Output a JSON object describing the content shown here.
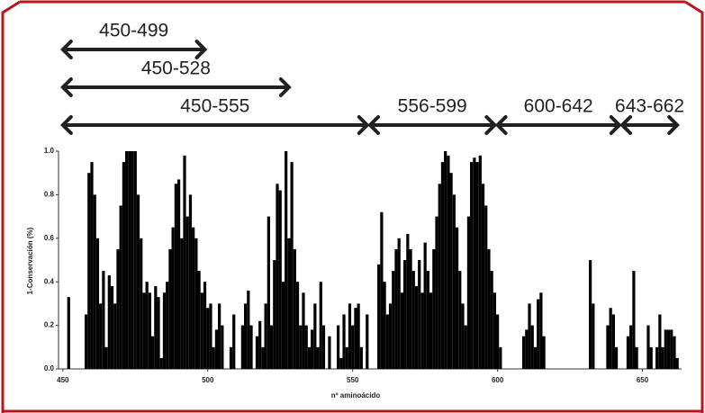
{
  "chart_data": {
    "type": "bar",
    "xlabel": "nº aminoácido",
    "ylabel": "1-Conservación (%)",
    "color": "#000000",
    "annotations": [
      {
        "label": "450-499",
        "start": 450,
        "end": 499
      },
      {
        "label": "450-528",
        "start": 450,
        "end": 528
      },
      {
        "label": "450-555",
        "start": 450,
        "end": 555
      },
      {
        "label": "556-599",
        "start": 556,
        "end": 599
      },
      {
        "label": "600-642",
        "start": 600,
        "end": 642
      },
      {
        "label": "643-662",
        "start": 643,
        "end": 662
      }
    ],
    "x": [
      450,
      451,
      452,
      453,
      454,
      455,
      456,
      457,
      458,
      459,
      460,
      461,
      462,
      463,
      464,
      465,
      466,
      467,
      468,
      469,
      470,
      471,
      472,
      473,
      474,
      475,
      476,
      477,
      478,
      479,
      480,
      481,
      482,
      483,
      484,
      485,
      486,
      487,
      488,
      489,
      490,
      491,
      492,
      493,
      494,
      495,
      496,
      497,
      498,
      499,
      500,
      501,
      502,
      503,
      504,
      505,
      506,
      507,
      508,
      509,
      510,
      511,
      512,
      513,
      514,
      515,
      516,
      517,
      518,
      519,
      520,
      521,
      522,
      523,
      524,
      525,
      526,
      527,
      528,
      529,
      530,
      531,
      532,
      533,
      534,
      535,
      536,
      537,
      538,
      539,
      540,
      541,
      542,
      543,
      544,
      545,
      546,
      547,
      548,
      549,
      550,
      551,
      552,
      553,
      554,
      555,
      556,
      557,
      558,
      559,
      560,
      561,
      562,
      563,
      564,
      565,
      566,
      567,
      568,
      569,
      570,
      571,
      572,
      573,
      574,
      575,
      576,
      577,
      578,
      579,
      580,
      581,
      582,
      583,
      584,
      585,
      586,
      587,
      588,
      589,
      590,
      591,
      592,
      593,
      594,
      595,
      596,
      597,
      598,
      599,
      600,
      601,
      602,
      603,
      604,
      605,
      606,
      607,
      608,
      609,
      610,
      611,
      612,
      613,
      614,
      615,
      616,
      617,
      618,
      619,
      620,
      621,
      622,
      623,
      624,
      625,
      626,
      627,
      628,
      629,
      630,
      631,
      632,
      633,
      634,
      635,
      636,
      637,
      638,
      639,
      640,
      641,
      642,
      643,
      644,
      645,
      646,
      647,
      648,
      649,
      650,
      651,
      652,
      653,
      654,
      655,
      656,
      657,
      658,
      659,
      660,
      661,
      662
    ],
    "values": [
      0,
      0,
      0.33,
      0,
      0,
      0,
      0,
      0,
      0.25,
      0.9,
      0.95,
      0.8,
      0.6,
      0.3,
      0.45,
      0.1,
      0.43,
      0.38,
      0.3,
      0.55,
      0.75,
      0.95,
      1,
      1,
      1,
      1,
      0.8,
      0.6,
      0.35,
      0.4,
      0.35,
      0.15,
      0.38,
      0.33,
      0.05,
      0.35,
      0.4,
      0.55,
      0.65,
      0.85,
      0.87,
      0.6,
      0.98,
      0.7,
      0.8,
      0.65,
      0.6,
      0.45,
      0.35,
      0.4,
      0.28,
      0.3,
      0.1,
      0.18,
      0.3,
      0.2,
      0,
      0,
      0.1,
      0.25,
      0,
      0,
      0.2,
      0.3,
      0.36,
      0.2,
      0,
      0.15,
      0.22,
      0.1,
      0.3,
      0.7,
      0.2,
      0.5,
      0.85,
      0.82,
      0.4,
      1,
      0.6,
      0.95,
      0.55,
      0.4,
      0.2,
      0.35,
      0.2,
      0.1,
      0.18,
      0.3,
      0.1,
      0.4,
      0.2,
      0,
      0.15,
      0,
      0,
      0.2,
      0.05,
      0.25,
      0.1,
      0.3,
      0.2,
      0.28,
      0.3,
      0.1,
      0,
      0.25,
      0,
      0,
      0,
      0.48,
      0.72,
      0.4,
      0.25,
      0.3,
      0.45,
      0.55,
      0.6,
      0.35,
      0.5,
      0.62,
      0.55,
      0.45,
      0.38,
      0.5,
      0.35,
      0.58,
      0.45,
      0.35,
      0.55,
      0.7,
      0.85,
      0.95,
      1,
      0.98,
      0.9,
      0.8,
      0.65,
      0.45,
      0.3,
      0.2,
      0.7,
      0.95,
      0.97,
      0.95,
      0.98,
      0.85,
      0.75,
      0.55,
      0.45,
      0.35,
      0.25,
      0.1,
      0,
      0,
      0,
      0,
      0,
      0,
      0,
      0.15,
      0.18,
      0.3,
      0.2,
      0.1,
      0.32,
      0.35,
      0.15,
      0,
      0,
      0,
      0,
      0,
      0,
      0,
      0,
      0,
      0,
      0,
      0,
      0,
      0,
      0,
      0.5,
      0.3,
      0,
      0,
      0,
      0,
      0.2,
      0.28,
      0.25,
      0.1,
      0,
      0,
      0,
      0.15,
      0.2,
      0.45,
      0.1,
      0,
      0,
      0,
      0.2,
      0.1,
      0,
      0.1,
      0.25,
      0.1,
      0.18,
      0.18,
      0.18,
      0.15,
      0.05
    ],
    "xlim": [
      448.5,
      663.5
    ],
    "xticks": [
      450,
      500,
      550,
      600,
      650
    ],
    "ylim": [
      0,
      1
    ],
    "yticks": [
      {
        "value": 0,
        "label": "0.0"
      },
      0.2,
      0.4,
      0.6,
      0.8,
      {
        "value": 1,
        "label": "1.0"
      }
    ]
  }
}
